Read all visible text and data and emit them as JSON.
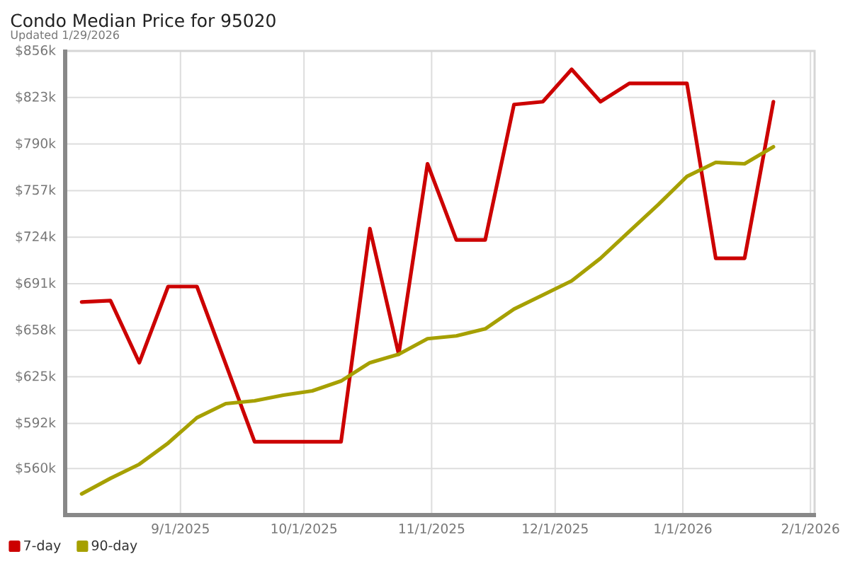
{
  "chart_data": {
    "type": "line",
    "title": "Condo Median Price for 95020",
    "subtitle": "Updated 1/29/2026",
    "x": [
      "2025-08-08",
      "2025-08-15",
      "2025-08-22",
      "2025-08-29",
      "2025-09-05",
      "2025-09-12",
      "2025-09-19",
      "2025-09-26",
      "2025-10-03",
      "2025-10-10",
      "2025-10-17",
      "2025-10-24",
      "2025-10-31",
      "2025-11-07",
      "2025-11-14",
      "2025-11-21",
      "2025-11-28",
      "2025-12-05",
      "2025-12-12",
      "2025-12-19",
      "2025-12-26",
      "2026-01-02",
      "2026-01-09",
      "2026-01-16",
      "2026-01-23"
    ],
    "series": [
      {
        "name": "7-day",
        "color": "#cc0000",
        "values": [
          678,
          679,
          635,
          689,
          689,
          634,
          579,
          579,
          579,
          579,
          730,
          641,
          776,
          722,
          722,
          818,
          820,
          843,
          820,
          833,
          833,
          833,
          709,
          709,
          820
        ]
      },
      {
        "name": "90-day",
        "color": "#a6a000",
        "values": [
          542,
          553,
          563,
          578,
          596,
          606,
          608,
          612,
          615,
          622,
          635,
          641,
          652,
          654,
          659,
          673,
          683,
          693,
          709,
          728,
          747,
          767,
          777,
          776,
          788
        ]
      }
    ],
    "xlim": [
      "2025-08-04",
      "2026-02-02"
    ],
    "xticks": [
      {
        "value": "2025-09-01",
        "label": "9/1/2025"
      },
      {
        "value": "2025-10-01",
        "label": "10/1/2025"
      },
      {
        "value": "2025-11-01",
        "label": "11/1/2025"
      },
      {
        "value": "2025-12-01",
        "label": "12/1/2025"
      },
      {
        "value": "2026-01-01",
        "label": "1/1/2026"
      },
      {
        "value": "2026-02-01",
        "label": "2/1/2026"
      }
    ],
    "ylim": [
      527,
      856
    ],
    "yticks": [
      {
        "value": 560,
        "label": "$560k"
      },
      {
        "value": 592,
        "label": "$592k"
      },
      {
        "value": 625,
        "label": "$625k"
      },
      {
        "value": 658,
        "label": "$658k"
      },
      {
        "value": 691,
        "label": "$691k"
      },
      {
        "value": 724,
        "label": "$724k"
      },
      {
        "value": 757,
        "label": "$757k"
      },
      {
        "value": 790,
        "label": "$790k"
      },
      {
        "value": 823,
        "label": "$823k"
      },
      {
        "value": 856,
        "label": "$856k"
      }
    ],
    "grid": true,
    "legend": "bottom left",
    "line_style": "solid"
  }
}
